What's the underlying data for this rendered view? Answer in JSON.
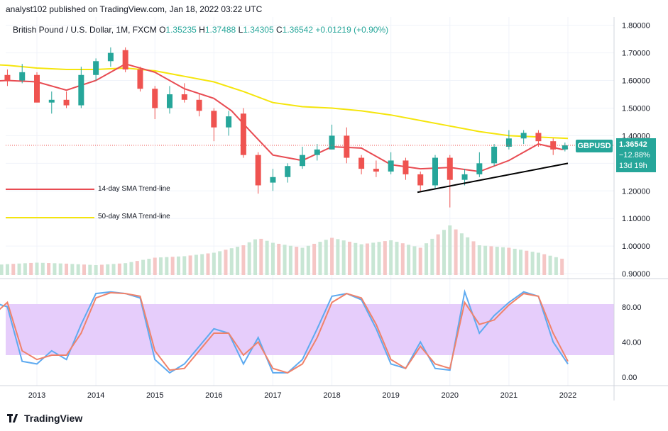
{
  "header": {
    "published": "analyst102 published on TradingView.com, Jan 18, 2022 03:22 UTC"
  },
  "symbol_line": {
    "name": "British Pound / U.S. Dollar, 1M, FXCM",
    "o_label": "O",
    "o": "1.35235",
    "h_label": "H",
    "h": "1.37488",
    "l_label": "L",
    "l": "1.34305",
    "c_label": "C",
    "c": "1.36542",
    "change": "+0.01219 (+0.90%)"
  },
  "price_badge": {
    "symbol": "GBPUSD",
    "price": "1.36542",
    "pct": "−12.88%",
    "countdown": "13d 19h"
  },
  "legend": {
    "sma14": "14-day SMA Trend-line",
    "sma50": "50-day SMA Trend-line"
  },
  "footer": {
    "logo_text": "TradingView"
  },
  "colors": {
    "up": "#26a69a",
    "down": "#ef5350",
    "sma14": "#e84b52",
    "sma50": "#f5e50c",
    "stoch_k": "#5eaaf0",
    "stoch_d": "#f0826a",
    "band": "#e6cdfb"
  },
  "chart_data": [
    {
      "type": "candlestick",
      "title": "British Pound / U.S. Dollar, 1M, FXCM",
      "x_ticks": [
        "2013",
        "2014",
        "2015",
        "2016",
        "2017",
        "2018",
        "2019",
        "2020",
        "2021",
        "2022"
      ],
      "y_ticks": [
        "1.80000",
        "1.70000",
        "1.60000",
        "1.50000",
        "1.40000",
        "1.30000",
        "1.20000",
        "1.10000",
        "1.00000",
        "0.90000"
      ],
      "ylim": [
        0.895,
        1.83
      ],
      "last_close": 1.36542,
      "sma14_points": [
        [
          2012.0,
          1.595
        ],
        [
          2012.5,
          1.6
        ],
        [
          2013.0,
          1.595
        ],
        [
          2013.5,
          1.565
        ],
        [
          2014.0,
          1.6
        ],
        [
          2014.5,
          1.66
        ],
        [
          2015.0,
          1.63
        ],
        [
          2015.5,
          1.57
        ],
        [
          2016.0,
          1.535
        ],
        [
          2016.3,
          1.49
        ],
        [
          2016.6,
          1.42
        ],
        [
          2017.0,
          1.33
        ],
        [
          2017.5,
          1.31
        ],
        [
          2018.0,
          1.36
        ],
        [
          2018.5,
          1.355
        ],
        [
          2019.0,
          1.295
        ],
        [
          2019.5,
          1.28
        ],
        [
          2020.0,
          1.285
        ],
        [
          2020.5,
          1.27
        ],
        [
          2021.0,
          1.31
        ],
        [
          2021.5,
          1.37
        ],
        [
          2021.9,
          1.35
        ],
        [
          2022.0,
          1.355
        ]
      ],
      "sma50_points": [
        [
          2012.0,
          1.66
        ],
        [
          2012.5,
          1.655
        ],
        [
          2013.0,
          1.645
        ],
        [
          2013.5,
          1.64
        ],
        [
          2014.0,
          1.64
        ],
        [
          2014.5,
          1.645
        ],
        [
          2015.0,
          1.635
        ],
        [
          2015.5,
          1.615
        ],
        [
          2016.0,
          1.595
        ],
        [
          2016.5,
          1.56
        ],
        [
          2017.0,
          1.52
        ],
        [
          2017.5,
          1.505
        ],
        [
          2018.0,
          1.5
        ],
        [
          2018.5,
          1.49
        ],
        [
          2019.0,
          1.475
        ],
        [
          2019.5,
          1.455
        ],
        [
          2020.0,
          1.435
        ],
        [
          2020.5,
          1.415
        ],
        [
          2021.0,
          1.4
        ],
        [
          2021.5,
          1.395
        ],
        [
          2022.0,
          1.39
        ]
      ],
      "trendline": [
        [
          2019.45,
          1.195
        ],
        [
          2022.0,
          1.3
        ]
      ],
      "candles": [
        {
          "t": 2012.0,
          "o": 1.56,
          "h": 1.63,
          "l": 1.53,
          "c": 1.6
        },
        {
          "t": 2012.25,
          "o": 1.6,
          "h": 1.63,
          "l": 1.56,
          "c": 1.62
        },
        {
          "t": 2012.5,
          "o": 1.62,
          "h": 1.64,
          "l": 1.58,
          "c": 1.6
        },
        {
          "t": 2012.75,
          "o": 1.6,
          "h": 1.66,
          "l": 1.59,
          "c": 1.63
        },
        {
          "t": 2013.0,
          "o": 1.62,
          "h": 1.63,
          "l": 1.52,
          "c": 1.52
        },
        {
          "t": 2013.25,
          "o": 1.52,
          "h": 1.56,
          "l": 1.48,
          "c": 1.53
        },
        {
          "t": 2013.5,
          "o": 1.53,
          "h": 1.56,
          "l": 1.5,
          "c": 1.51
        },
        {
          "t": 2013.75,
          "o": 1.51,
          "h": 1.65,
          "l": 1.5,
          "c": 1.62
        },
        {
          "t": 2014.0,
          "o": 1.62,
          "h": 1.68,
          "l": 1.6,
          "c": 1.67
        },
        {
          "t": 2014.25,
          "o": 1.67,
          "h": 1.72,
          "l": 1.65,
          "c": 1.7
        },
        {
          "t": 2014.5,
          "o": 1.71,
          "h": 1.72,
          "l": 1.63,
          "c": 1.64
        },
        {
          "t": 2014.75,
          "o": 1.64,
          "h": 1.65,
          "l": 1.56,
          "c": 1.57
        },
        {
          "t": 2015.0,
          "o": 1.57,
          "h": 1.58,
          "l": 1.46,
          "c": 1.5
        },
        {
          "t": 2015.25,
          "o": 1.5,
          "h": 1.58,
          "l": 1.48,
          "c": 1.55
        },
        {
          "t": 2015.5,
          "o": 1.55,
          "h": 1.59,
          "l": 1.52,
          "c": 1.53
        },
        {
          "t": 2015.75,
          "o": 1.53,
          "h": 1.55,
          "l": 1.47,
          "c": 1.49
        },
        {
          "t": 2016.0,
          "o": 1.49,
          "h": 1.5,
          "l": 1.38,
          "c": 1.43
        },
        {
          "t": 2016.25,
          "o": 1.43,
          "h": 1.49,
          "l": 1.4,
          "c": 1.47
        },
        {
          "t": 2016.5,
          "o": 1.48,
          "h": 1.5,
          "l": 1.32,
          "c": 1.33
        },
        {
          "t": 2016.75,
          "o": 1.33,
          "h": 1.34,
          "l": 1.19,
          "c": 1.22
        },
        {
          "t": 2017.0,
          "o": 1.23,
          "h": 1.28,
          "l": 1.2,
          "c": 1.25
        },
        {
          "t": 2017.25,
          "o": 1.25,
          "h": 1.3,
          "l": 1.23,
          "c": 1.29
        },
        {
          "t": 2017.5,
          "o": 1.29,
          "h": 1.36,
          "l": 1.28,
          "c": 1.33
        },
        {
          "t": 2017.75,
          "o": 1.33,
          "h": 1.37,
          "l": 1.31,
          "c": 1.35
        },
        {
          "t": 2018.0,
          "o": 1.35,
          "h": 1.44,
          "l": 1.35,
          "c": 1.4
        },
        {
          "t": 2018.25,
          "o": 1.4,
          "h": 1.43,
          "l": 1.3,
          "c": 1.32
        },
        {
          "t": 2018.5,
          "o": 1.32,
          "h": 1.33,
          "l": 1.26,
          "c": 1.28
        },
        {
          "t": 2018.75,
          "o": 1.28,
          "h": 1.31,
          "l": 1.25,
          "c": 1.27
        },
        {
          "t": 2019.0,
          "o": 1.27,
          "h": 1.34,
          "l": 1.26,
          "c": 1.31
        },
        {
          "t": 2019.25,
          "o": 1.31,
          "h": 1.32,
          "l": 1.24,
          "c": 1.26
        },
        {
          "t": 2019.5,
          "o": 1.26,
          "h": 1.27,
          "l": 1.2,
          "c": 1.22
        },
        {
          "t": 2019.75,
          "o": 1.22,
          "h": 1.33,
          "l": 1.21,
          "c": 1.32
        },
        {
          "t": 2020.0,
          "o": 1.32,
          "h": 1.33,
          "l": 1.14,
          "c": 1.24
        },
        {
          "t": 2020.25,
          "o": 1.24,
          "h": 1.28,
          "l": 1.22,
          "c": 1.26
        },
        {
          "t": 2020.5,
          "o": 1.26,
          "h": 1.34,
          "l": 1.25,
          "c": 1.3
        },
        {
          "t": 2020.75,
          "o": 1.3,
          "h": 1.37,
          "l": 1.29,
          "c": 1.36
        },
        {
          "t": 2021.0,
          "o": 1.36,
          "h": 1.42,
          "l": 1.35,
          "c": 1.39
        },
        {
          "t": 2021.25,
          "o": 1.39,
          "h": 1.42,
          "l": 1.37,
          "c": 1.41
        },
        {
          "t": 2021.5,
          "o": 1.41,
          "h": 1.42,
          "l": 1.36,
          "c": 1.38
        },
        {
          "t": 2021.75,
          "o": 1.38,
          "h": 1.39,
          "l": 1.33,
          "c": 1.35
        },
        {
          "t": 2021.95,
          "o": 1.35,
          "h": 1.375,
          "l": 1.343,
          "c": 1.365
        }
      ],
      "volume": [
        {
          "t": 2012.0,
          "v": 0.18
        },
        {
          "t": 2012.5,
          "v": 0.22
        },
        {
          "t": 2013.0,
          "v": 0.25
        },
        {
          "t": 2013.5,
          "v": 0.23
        },
        {
          "t": 2014.0,
          "v": 0.2
        },
        {
          "t": 2014.5,
          "v": 0.24
        },
        {
          "t": 2015.0,
          "v": 0.35
        },
        {
          "t": 2015.5,
          "v": 0.38
        },
        {
          "t": 2016.0,
          "v": 0.45
        },
        {
          "t": 2016.5,
          "v": 0.6
        },
        {
          "t": 2016.75,
          "v": 0.75
        },
        {
          "t": 2017.0,
          "v": 0.65
        },
        {
          "t": 2017.5,
          "v": 0.55
        },
        {
          "t": 2018.0,
          "v": 0.75
        },
        {
          "t": 2018.5,
          "v": 0.62
        },
        {
          "t": 2019.0,
          "v": 0.7
        },
        {
          "t": 2019.5,
          "v": 0.55
        },
        {
          "t": 2020.0,
          "v": 1.0
        },
        {
          "t": 2020.5,
          "v": 0.6
        },
        {
          "t": 2021.0,
          "v": 0.55
        },
        {
          "t": 2021.5,
          "v": 0.45
        },
        {
          "t": 2022.0,
          "v": 0.3
        }
      ]
    },
    {
      "type": "line",
      "title": "",
      "y_ticks": [
        "80.00",
        "40.00",
        "0.00"
      ],
      "ylim": [
        -8,
        108
      ],
      "band": [
        20,
        80
      ],
      "series": [
        {
          "key": "k",
          "points": [
            [
              2012.0,
              40
            ],
            [
              2012.25,
              85
            ],
            [
              2012.5,
              80
            ],
            [
              2012.75,
              18
            ],
            [
              2013.0,
              15
            ],
            [
              2013.25,
              30
            ],
            [
              2013.5,
              20
            ],
            [
              2013.75,
              60
            ],
            [
              2014.0,
              95
            ],
            [
              2014.25,
              97
            ],
            [
              2014.5,
              95
            ],
            [
              2014.75,
              90
            ],
            [
              2015.0,
              20
            ],
            [
              2015.25,
              5
            ],
            [
              2015.5,
              15
            ],
            [
              2015.75,
              35
            ],
            [
              2016.0,
              55
            ],
            [
              2016.25,
              50
            ],
            [
              2016.5,
              15
            ],
            [
              2016.75,
              45
            ],
            [
              2017.0,
              5
            ],
            [
              2017.25,
              5
            ],
            [
              2017.5,
              20
            ],
            [
              2017.75,
              55
            ],
            [
              2018.0,
              92
            ],
            [
              2018.25,
              95
            ],
            [
              2018.5,
              88
            ],
            [
              2018.75,
              55
            ],
            [
              2019.0,
              15
            ],
            [
              2019.25,
              10
            ],
            [
              2019.5,
              40
            ],
            [
              2019.75,
              10
            ],
            [
              2020.0,
              8
            ],
            [
              2020.25,
              97
            ],
            [
              2020.5,
              50
            ],
            [
              2020.75,
              70
            ],
            [
              2021.0,
              85
            ],
            [
              2021.25,
              97
            ],
            [
              2021.5,
              92
            ],
            [
              2021.75,
              40
            ],
            [
              2022.0,
              15
            ]
          ]
        },
        {
          "key": "d",
          "points": [
            [
              2012.0,
              30
            ],
            [
              2012.25,
              70
            ],
            [
              2012.5,
              85
            ],
            [
              2012.75,
              30
            ],
            [
              2013.0,
              20
            ],
            [
              2013.25,
              25
            ],
            [
              2013.5,
              25
            ],
            [
              2013.75,
              50
            ],
            [
              2014.0,
              90
            ],
            [
              2014.25,
              96
            ],
            [
              2014.5,
              95
            ],
            [
              2014.75,
              92
            ],
            [
              2015.0,
              30
            ],
            [
              2015.25,
              8
            ],
            [
              2015.5,
              10
            ],
            [
              2015.75,
              30
            ],
            [
              2016.0,
              50
            ],
            [
              2016.25,
              50
            ],
            [
              2016.5,
              25
            ],
            [
              2016.75,
              40
            ],
            [
              2017.0,
              10
            ],
            [
              2017.25,
              5
            ],
            [
              2017.5,
              15
            ],
            [
              2017.75,
              45
            ],
            [
              2018.0,
              85
            ],
            [
              2018.25,
              95
            ],
            [
              2018.5,
              90
            ],
            [
              2018.75,
              60
            ],
            [
              2019.0,
              20
            ],
            [
              2019.25,
              10
            ],
            [
              2019.5,
              35
            ],
            [
              2019.75,
              15
            ],
            [
              2020.0,
              10
            ],
            [
              2020.25,
              85
            ],
            [
              2020.5,
              60
            ],
            [
              2020.75,
              65
            ],
            [
              2021.0,
              82
            ],
            [
              2021.25,
              95
            ],
            [
              2021.5,
              92
            ],
            [
              2021.75,
              50
            ],
            [
              2022.0,
              18
            ]
          ]
        }
      ]
    }
  ]
}
